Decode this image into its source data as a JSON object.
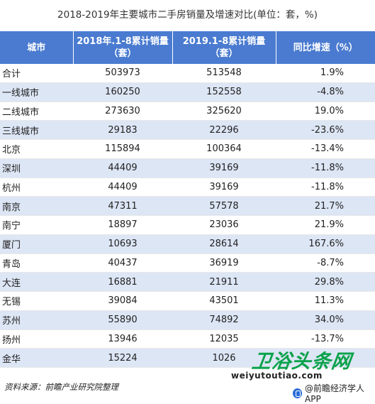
{
  "title": "2018-2019年主要城市二手房销量及增速对比(单位：套，%)",
  "table": {
    "headers": [
      "城市",
      "2018年.1-8累计销量（套）",
      "2019.1-8累计销量（套）",
      "同比增速（%）"
    ],
    "rows": [
      {
        "city": "合计",
        "y2018": "503973",
        "y2019": "513548",
        "growth": "1.9%"
      },
      {
        "city": "一线城市",
        "y2018": "160250",
        "y2019": "152558",
        "growth": "-4.8%"
      },
      {
        "city": "二线城市",
        "y2018": "273630",
        "y2019": "325620",
        "growth": "19.0%"
      },
      {
        "city": "三线城市",
        "y2018": "29183",
        "y2019": "22296",
        "growth": "-23.6%"
      },
      {
        "city": "北京",
        "y2018": "115894",
        "y2019": "100364",
        "growth": "-13.4%"
      },
      {
        "city": "深圳",
        "y2018": "44409",
        "y2019": "39169",
        "growth": "-11.8%"
      },
      {
        "city": "杭州",
        "y2018": "44409",
        "y2019": "39169",
        "growth": "-11.8%"
      },
      {
        "city": "南京",
        "y2018": "47311",
        "y2019": "57578",
        "growth": "21.7%"
      },
      {
        "city": "南宁",
        "y2018": "18897",
        "y2019": "23036",
        "growth": "21.9%"
      },
      {
        "city": "厦门",
        "y2018": "10693",
        "y2019": "28614",
        "growth": "167.6%"
      },
      {
        "city": "青岛",
        "y2018": "40437",
        "y2019": "36919",
        "growth": "-8.7%"
      },
      {
        "city": "大连",
        "y2018": "16881",
        "y2019": "21911",
        "growth": "29.8%"
      },
      {
        "city": "无锡",
        "y2018": "39084",
        "y2019": "43501",
        "growth": "11.3%"
      },
      {
        "city": "苏州",
        "y2018": "55890",
        "y2019": "74892",
        "growth": "34.0%"
      },
      {
        "city": "扬州",
        "y2018": "13946",
        "y2019": "12035",
        "growth": "-13.7%"
      },
      {
        "city": "金华",
        "y2018": "15224",
        "y2019": "1026",
        "growth": ""
      }
    ]
  },
  "source": "资料来源：前瞻产业研究院整理",
  "watermark": {
    "logo": "卫浴头条网",
    "url": "weiyutoutiao.com"
  },
  "credit": "@前瞻经济学人APP",
  "colors": {
    "header_bg": "#4a7bd0",
    "stripe": "#dde6f5",
    "logo_green": "#0aa24a"
  }
}
